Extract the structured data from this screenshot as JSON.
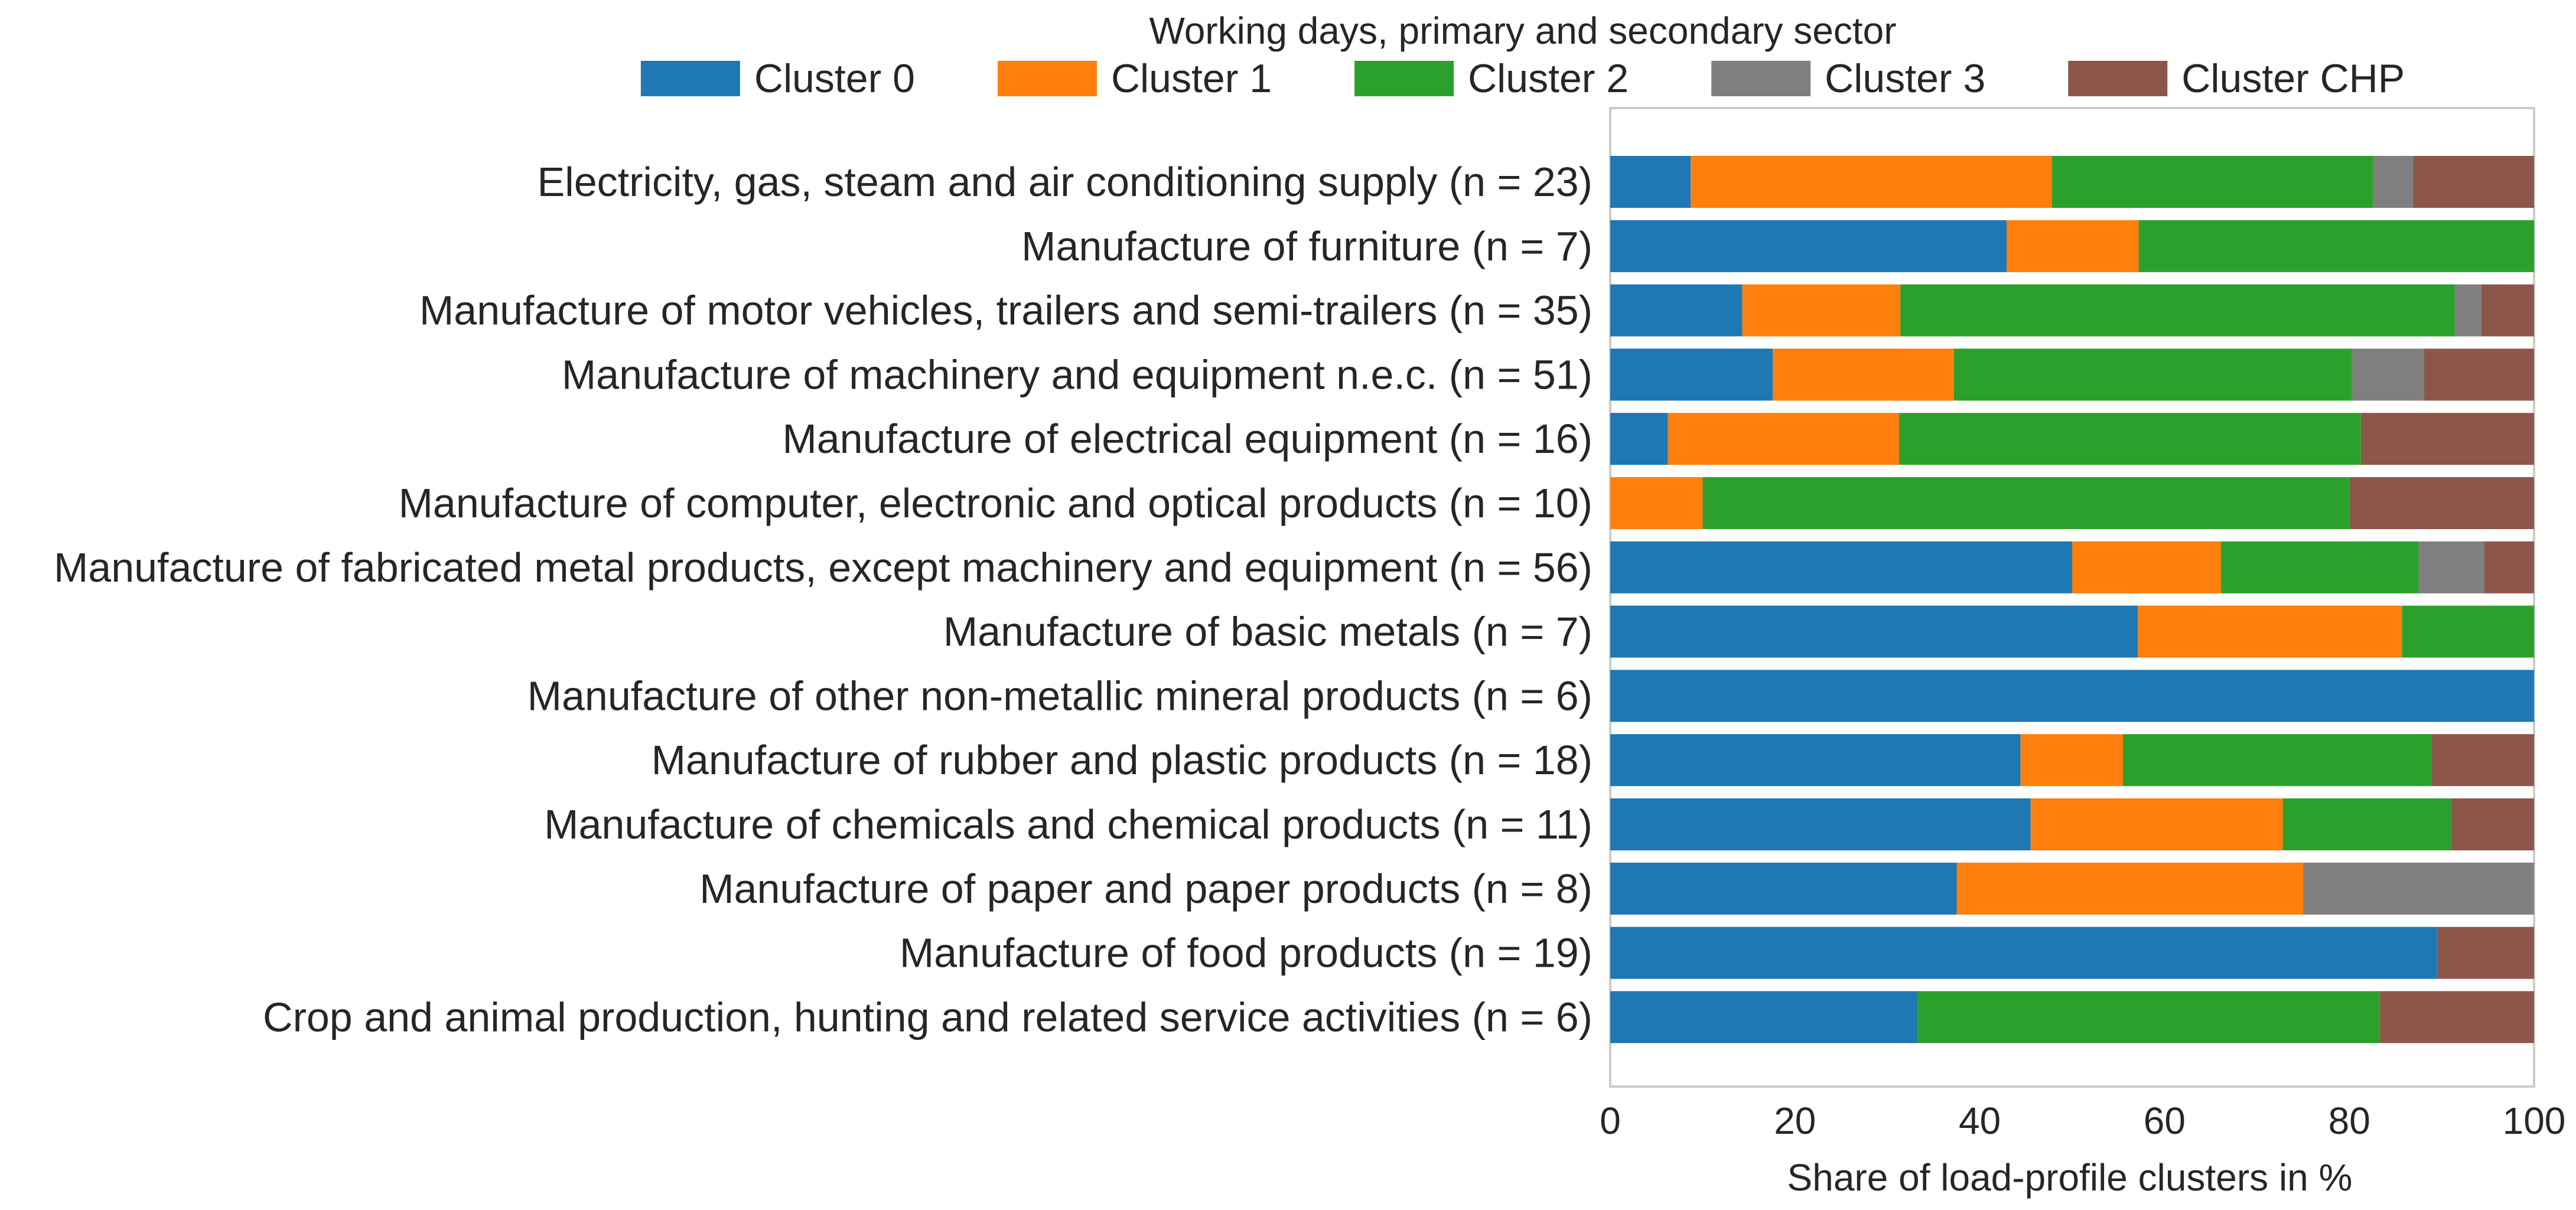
{
  "chart_data": {
    "type": "bar",
    "orientation": "horizontal",
    "stacked": true,
    "xlabel": "Share of load-profile clusters in %",
    "ylabel": "",
    "xlim": [
      0,
      100
    ],
    "xticks": [
      0,
      20,
      40,
      60,
      80,
      100
    ],
    "grid": false,
    "legend": {
      "title": "Working days, primary and secondary sector",
      "placement": "top"
    },
    "categories": [
      "Electricity, gas, steam and air conditioning supply (n = 23)",
      "Manufacture of furniture (n = 7)",
      "Manufacture of motor vehicles, trailers and semi-trailers (n = 35)",
      "Manufacture of machinery and equipment n.e.c. (n = 51)",
      "Manufacture of electrical equipment (n = 16)",
      "Manufacture of computer, electronic and optical products (n = 10)",
      "Manufacture of fabricated metal products, except machinery and equipment (n = 56)",
      "Manufacture of basic metals (n = 7)",
      "Manufacture of other non-metallic mineral products (n = 6)",
      "Manufacture of rubber and plastic products (n = 18)",
      "Manufacture of chemicals and chemical products (n = 11)",
      "Manufacture of paper and paper products (n = 8)",
      "Manufacture of food products (n = 19)",
      "Crop and animal production, hunting and related service activities (n = 6)"
    ],
    "series": [
      {
        "name": "Cluster 0",
        "color": "#1f77b4",
        "values": [
          8.7,
          42.9,
          14.3,
          17.6,
          6.25,
          0,
          50.0,
          57.1,
          100,
          44.4,
          45.5,
          37.5,
          89.5,
          33.3
        ]
      },
      {
        "name": "Cluster 1",
        "color": "#ff7f0e",
        "values": [
          39.1,
          14.3,
          17.1,
          19.6,
          25.0,
          10.0,
          16.1,
          28.6,
          0,
          11.1,
          27.3,
          37.5,
          0,
          0
        ]
      },
      {
        "name": "Cluster 2",
        "color": "#2ca02c",
        "values": [
          34.8,
          42.8,
          60.0,
          43.1,
          50.0,
          70.0,
          21.4,
          14.3,
          0,
          33.4,
          18.2,
          0,
          0,
          50.0
        ]
      },
      {
        "name": "Cluster 3",
        "color": "#7f7f7f",
        "values": [
          4.3,
          0,
          2.9,
          7.8,
          0,
          0,
          7.1,
          0,
          0,
          0,
          0,
          25.0,
          0,
          0
        ]
      },
      {
        "name": "Cluster CHP",
        "color": "#8c564b",
        "values": [
          13.1,
          0,
          5.7,
          11.9,
          18.75,
          20.0,
          5.4,
          0,
          0,
          11.1,
          9.0,
          0,
          10.5,
          16.7
        ]
      }
    ]
  }
}
